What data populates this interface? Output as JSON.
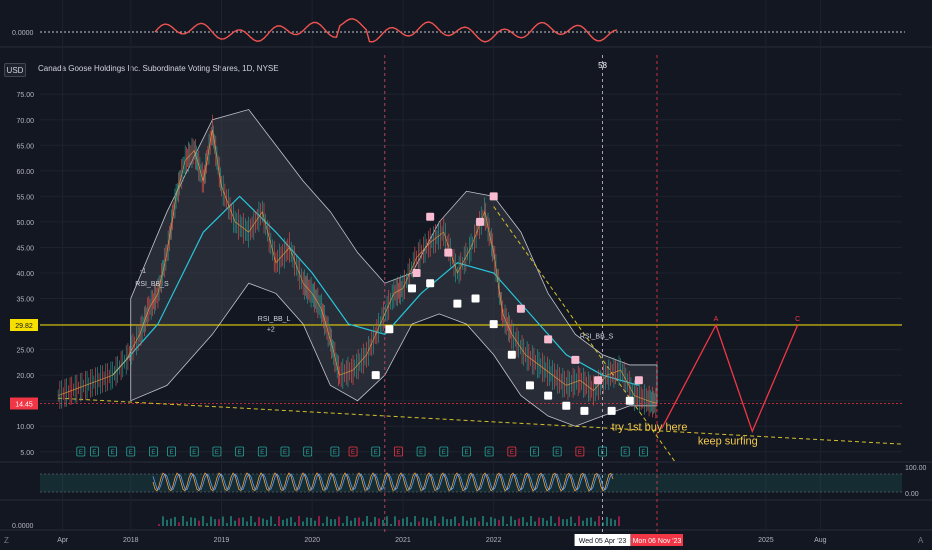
{
  "header": {
    "currency": "USD",
    "symbol_title": "Canada Goose Holdings Inc. Subordinate Voting Shares, 1D, NYSE",
    "top_marker": "58"
  },
  "corners": {
    "bottom_left": "Z",
    "bottom_right": "A"
  },
  "colors": {
    "background": "#131722",
    "grid": "#1e222d",
    "axis_text": "#b2b5be",
    "price_line": "#f7e000",
    "last_price": "#f23645",
    "red_wave": "#f23645",
    "dashed_trend": "#d6c02a",
    "annotation": "#f2c94c",
    "band_fill": "#434651",
    "earnings_green": "#26a69a",
    "earnings_red": "#f23645",
    "rsi_fast": "#f6a03c",
    "rsi_slow": "#5b9cf6"
  },
  "chart_data": {
    "type": "line",
    "title": "Canada Goose Holdings Inc. Subordinate Voting Shares, 1D, NYSE",
    "xlabel": "",
    "ylabel": "",
    "ylim": [
      3,
      77
    ],
    "y_ticks": [
      "75.00",
      "70.00",
      "65.00",
      "60.00",
      "55.00",
      "50.00",
      "45.00",
      "40.00",
      "35.00",
      "30.00",
      "25.00",
      "20.00",
      "15.00",
      "10.00",
      "5.00"
    ],
    "y_tick_values": [
      75,
      70,
      65,
      60,
      55,
      50,
      45,
      40,
      35,
      30,
      25,
      20,
      15,
      10,
      5
    ],
    "x_ticks": [
      "Apr",
      "2018",
      "2019",
      "2020",
      "2021",
      "2022",
      "2025",
      "Aug"
    ],
    "x_tick_years": [
      2017.25,
      2018,
      2019,
      2020,
      2021,
      2022,
      2025,
      2025.6
    ],
    "x_range": [
      2017.0,
      2026.5
    ],
    "grid": true,
    "horizontal_level": {
      "value": 29.82,
      "label": "29.82"
    },
    "last_price": {
      "value": 14.45,
      "label": "14.45"
    },
    "crosshair_labels": [
      "Wed 05 Apr '23",
      "Mon 06 Nov '23"
    ],
    "price": {
      "x": [
        2017.2,
        2017.35,
        2017.5,
        2017.65,
        2017.8,
        2017.95,
        2018.1,
        2018.2,
        2018.3,
        2018.4,
        2018.5,
        2018.6,
        2018.7,
        2018.8,
        2018.9,
        2019.0,
        2019.15,
        2019.3,
        2019.45,
        2019.6,
        2019.75,
        2019.9,
        2020.0,
        2020.1,
        2020.2,
        2020.3,
        2020.45,
        2020.6,
        2020.75,
        2020.9,
        2021.0,
        2021.15,
        2021.3,
        2021.45,
        2021.6,
        2021.75,
        2021.9,
        2022.0,
        2022.1,
        2022.2,
        2022.35,
        2022.5,
        2022.65,
        2022.8,
        2022.95,
        2023.1,
        2023.25,
        2023.4,
        2023.55,
        2023.7,
        2023.8
      ],
      "values": [
        16,
        17,
        18,
        19,
        20,
        23,
        28,
        33,
        36,
        44,
        55,
        62,
        64,
        58,
        68,
        57,
        50,
        48,
        52,
        42,
        45,
        38,
        36,
        33,
        27,
        20,
        21,
        24,
        30,
        36,
        37,
        43,
        46,
        48,
        40,
        45,
        52,
        44,
        32,
        28,
        24,
        22,
        20,
        18,
        19,
        17,
        20,
        21,
        16,
        15,
        14.45
      ]
    },
    "series": [
      {
        "name": "RSI_BB_S",
        "values": [
          55,
          50,
          52,
          48,
          53,
          47,
          58,
          44,
          55,
          40,
          54,
          46
        ]
      },
      {
        "name": "RSI_BB_L",
        "values": [
          48,
          52,
          46,
          50,
          44,
          55,
          42,
          57,
          48,
          53,
          45,
          50
        ]
      }
    ],
    "band_upper": {
      "x": [
        2018.0,
        2018.4,
        2018.9,
        2019.3,
        2019.6,
        2019.9,
        2020.2,
        2020.5,
        2020.8,
        2021.1,
        2021.4,
        2021.7,
        2022.0,
        2022.3,
        2022.6,
        2022.9,
        2023.2,
        2023.5,
        2023.8
      ],
      "values": [
        35,
        52,
        70,
        72,
        65,
        58,
        52,
        44,
        38,
        40,
        50,
        56,
        55,
        48,
        36,
        28,
        24,
        22,
        22
      ]
    },
    "band_lower": {
      "x": [
        2018.0,
        2018.4,
        2018.9,
        2019.3,
        2019.6,
        2019.9,
        2020.2,
        2020.5,
        2020.8,
        2021.1,
        2021.4,
        2021.7,
        2022.0,
        2022.3,
        2022.6,
        2022.9,
        2023.2,
        2023.5,
        2023.8
      ],
      "values": [
        15,
        18,
        28,
        38,
        36,
        30,
        18,
        15,
        20,
        30,
        32,
        30,
        24,
        16,
        12,
        10,
        12,
        14,
        14
      ]
    },
    "ema_slow": {
      "x": [
        2017.8,
        2018.3,
        2018.8,
        2019.2,
        2019.6,
        2020.0,
        2020.4,
        2020.8,
        2021.2,
        2021.6,
        2022.0,
        2022.4,
        2022.8,
        2023.2,
        2023.6
      ],
      "values": [
        20,
        30,
        48,
        55,
        48,
        40,
        30,
        28,
        36,
        42,
        40,
        32,
        24,
        20,
        18
      ]
    },
    "red_wave": {
      "x": [
        2023.85,
        2024.45,
        2024.85,
        2025.35
      ],
      "values": [
        9.5,
        29.82,
        9.0,
        29.82
      ],
      "labels": [
        "",
        "A",
        "",
        "C"
      ]
    },
    "dashed_support": {
      "x": [
        2017.2,
        2026.5
      ],
      "values": [
        15.5,
        6.5
      ]
    },
    "dashed_down": {
      "x": [
        2022.0,
        2024.0
      ],
      "values": [
        53,
        3
      ]
    },
    "annotations": [
      {
        "text": "try 1st buy  here",
        "x": 2023.3,
        "y": 9.2
      },
      {
        "text": "keep surfing",
        "x": 2024.25,
        "y": 6.4
      },
      {
        "text": "RSI_BB_S",
        "x": 2018.05,
        "y": 37.5
      },
      {
        "text": "-1",
        "x": 2018.1,
        "y": 40.0
      },
      {
        "text": "RSI_BB_L",
        "x": 2019.4,
        "y": 30.6
      },
      {
        "text": "+2",
        "x": 2019.5,
        "y": 28.5
      },
      {
        "text": "RSI_BB_S",
        "x": 2022.95,
        "y": 27.2
      }
    ],
    "top_osc_label": "0.0000",
    "bottom_osc_label": "0.0000",
    "rsi_levels": [
      "100.00",
      "0.00"
    ],
    "earnings_letter": "E"
  }
}
